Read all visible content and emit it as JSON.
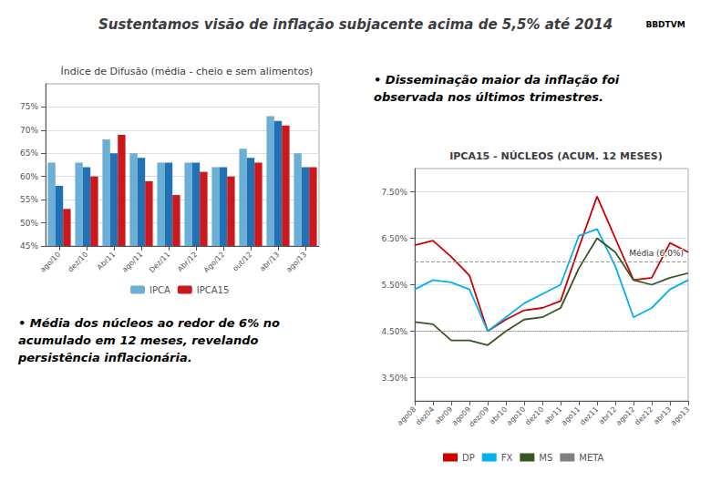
{
  "title": "Sustentamos visão de inflação subjacente acima de 5,5% até 2014",
  "annotations": [
    "• Disseminação maior da inflação foi\nobservada nos últimos trimestres.",
    "• Média dos núcleos ao redor de 6% no\nacumulado em 12 meses, revelando\npersistência inflacionária.",
    "BBDTVM"
  ],
  "chart_data": [
    {
      "type": "bar",
      "title": "Índice de Difusão (média - cheio e sem alimentos)",
      "categories": [
        "ago/10",
        "dez/10",
        "Abr11",
        "ago/11",
        "Dez/11",
        "Abr/12",
        "Ago/12",
        "out/12",
        "abr/13",
        "ago/13"
      ],
      "series": [
        {
          "name": "IPCA",
          "color": "#6BAED6",
          "values": [
            63,
            63,
            68,
            65,
            63,
            63,
            62,
            66,
            73,
            65
          ]
        },
        {
          "color": "#2171B5",
          "values": [
            58,
            62,
            65,
            64,
            63,
            63,
            62,
            64,
            72,
            62
          ]
        },
        {
          "name": "IPCA15",
          "color": "#CB181D",
          "values": [
            53,
            60,
            69,
            59,
            56,
            61,
            60,
            63,
            71,
            62
          ]
        }
      ],
      "ylim": [
        45,
        80
      ],
      "yticks": [
        {
          "value": 45,
          "label": "45%"
        },
        {
          "value": 50,
          "label": "50%"
        },
        {
          "value": 55,
          "label": "55%"
        },
        {
          "value": 60,
          "label": "60%"
        },
        {
          "value": 65,
          "label": "65%"
        },
        {
          "value": 70,
          "label": "70%"
        },
        {
          "value": 75,
          "label": "75%"
        }
      ],
      "grid": true,
      "legend": "bottom"
    },
    {
      "type": "line",
      "title": "IPCA15 - NÚCLEOS (ACUM. 12 MESES)",
      "categories": [
        "ago08",
        "dez04",
        "abr09",
        "ago09",
        "dez/09",
        "abr10",
        "ago10",
        "dez10",
        "abr11",
        "ago11",
        "dez11",
        "abr12",
        "ago12",
        "dez12",
        "abr13",
        "ago13"
      ],
      "series": [
        {
          "name": "DP",
          "color": "#CC0000",
          "values": [
            6.35,
            6.45,
            6.1,
            5.7,
            4.5,
            4.75,
            4.95,
            5.0,
            5.15,
            6.3,
            7.4,
            6.5,
            5.6,
            5.65,
            6.4,
            6.2
          ]
        },
        {
          "name": "FX",
          "color": "#00B0F0",
          "values": [
            5.4,
            5.6,
            5.55,
            5.4,
            4.5,
            4.8,
            5.1,
            5.3,
            5.5,
            6.55,
            6.7,
            5.9,
            4.8,
            5.0,
            5.4,
            5.6
          ]
        },
        {
          "name": "MS",
          "color": "#375623",
          "values": [
            4.7,
            4.65,
            4.3,
            4.3,
            4.2,
            4.5,
            4.75,
            4.8,
            5.0,
            5.85,
            6.5,
            6.2,
            5.6,
            5.5,
            5.65,
            5.75
          ]
        },
        {
          "name": "META",
          "color": "#808080",
          "line_style": "dotted",
          "values": [
            4.5,
            4.5,
            4.5,
            4.5,
            4.5,
            4.5,
            4.5,
            4.5,
            4.5,
            4.5,
            4.5,
            4.5,
            4.5,
            4.5,
            4.5,
            4.5
          ]
        }
      ],
      "annotations": [
        {
          "text": "Média (6,0%)",
          "y": 6.0,
          "color": "#999999",
          "line_style": "dashed"
        }
      ],
      "ylim": [
        3.0,
        8.0
      ],
      "yticks": [
        {
          "value": 3.5,
          "label": "3.50%"
        },
        {
          "value": 4.5,
          "label": "4.50%"
        },
        {
          "value": 5.5,
          "label": "5.50%"
        },
        {
          "value": 6.5,
          "label": "6.50%"
        },
        {
          "value": 7.5,
          "label": "7.50%"
        }
      ],
      "grid": true,
      "legend": "bottom"
    }
  ]
}
